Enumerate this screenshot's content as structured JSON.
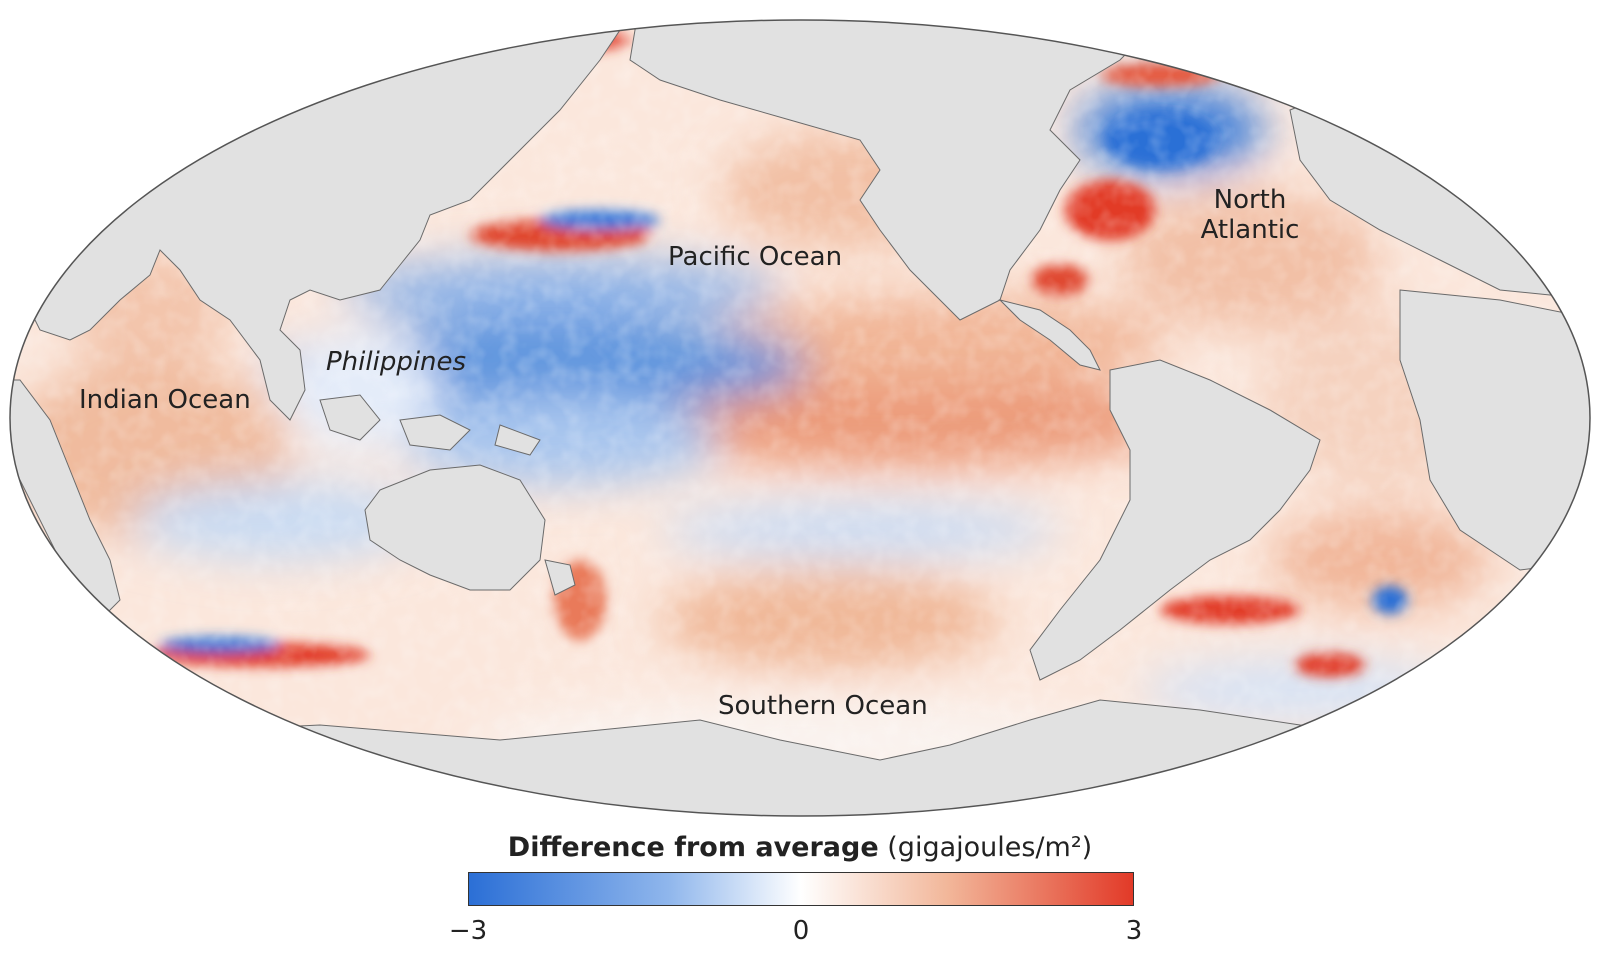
{
  "map": {
    "projection": "Mollweide",
    "land_color": "#e1e1e1",
    "border_color": "#6a6a6a",
    "labels": {
      "pacific": "Pacific Ocean",
      "north_atlantic_line1": "North",
      "north_atlantic_line2": "Atlantic",
      "philippines": "Philippines",
      "indian": "Indian Ocean",
      "southern": "Southern Ocean"
    }
  },
  "legend": {
    "title_bold": "Difference from average",
    "title_units": "(gigajoules/m²)",
    "colors": {
      "min": "#2b6fd6",
      "mid": "#ffffff",
      "max": "#e23a28"
    },
    "ticks": {
      "min": "−3",
      "mid": "0",
      "max": "3"
    },
    "range": [
      -3,
      3
    ]
  }
}
